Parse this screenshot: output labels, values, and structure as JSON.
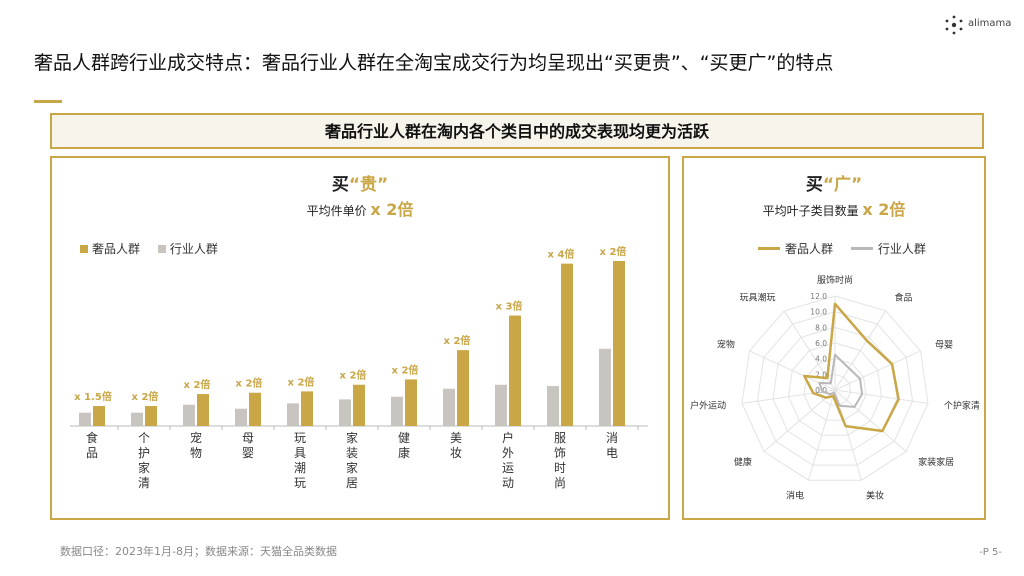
{
  "brand": {
    "name": "alimama"
  },
  "header": {
    "title": "奢品人群跨行业成交特点：奢品行业人群在全淘宝成交行为均呈现出“买更贵”、“买更广”的特点"
  },
  "banner": {
    "text": "奢品行业人群在淘内各个类目中的成交表现均更为活跃"
  },
  "left_panel": {
    "title_main": "买",
    "title_highlight": "“贵”",
    "subtitle_label": "平均件单价",
    "subtitle_multiplier": "x 2倍"
  },
  "right_panel": {
    "title_main": "买",
    "title_highlight": "“广”",
    "subtitle_label": "平均叶子类目数量",
    "subtitle_multiplier": "x 2倍"
  },
  "footer": {
    "note": "数据口径：2023年1月-8月；数据来源：天猫全品类数据",
    "page": "-P 5-"
  },
  "colors": {
    "gold": "#c9a646",
    "gray": "#c8c4c0",
    "border": "#c9a646"
  },
  "chart_data": [
    {
      "type": "bar",
      "title": "买“贵” 平均件单价 x 2倍",
      "categories": [
        "食品",
        "个护家清",
        "宠物",
        "母婴",
        "玩具潮玩",
        "家装家居",
        "健康",
        "美妆",
        "户外运动",
        "服饰时尚",
        "消电"
      ],
      "series": [
        {
          "name": "行业人群",
          "color": "#c8c4c0",
          "values": [
            1.0,
            1.0,
            1.6,
            1.3,
            1.7,
            2.0,
            2.2,
            2.8,
            3.1,
            3.0,
            5.8
          ]
        },
        {
          "name": "奢品人群",
          "color": "#c9a646",
          "values": [
            1.5,
            1.5,
            2.4,
            2.5,
            2.6,
            3.1,
            3.5,
            5.7,
            8.3,
            12.2,
            12.4
          ]
        }
      ],
      "data_labels": [
        "x 1.5倍",
        "x 2倍",
        "x 2倍",
        "x 2倍",
        "x 2倍",
        "x 2倍",
        "x 2倍",
        "x 2倍",
        "x 3倍",
        "x 4倍",
        "x 2倍"
      ],
      "legend": [
        "奢品人群",
        "行业人群"
      ],
      "ylim": [
        0,
        13
      ],
      "xlabel": "",
      "ylabel": ""
    },
    {
      "type": "radar",
      "title": "买“广” 平均叶子类目数量 x 2倍",
      "categories": [
        "服饰时尚",
        "食品",
        "母婴",
        "个护家清",
        "家装家居",
        "美妆",
        "消电",
        "健康",
        "户外运动",
        "宠物",
        "玩具潮玩"
      ],
      "ticks": [
        "0.0",
        "2.0",
        "4.0",
        "6.0",
        "8.0",
        "10.0",
        "12.0"
      ],
      "rlim": [
        0,
        12
      ],
      "series": [
        {
          "name": "奢品人群",
          "color": "#c9a646",
          "values": [
            11.0,
            7.5,
            8.0,
            8.2,
            8.0,
            4.8,
            0.8,
            1.5,
            2.8,
            4.3,
            1.8
          ]
        },
        {
          "name": "行业人群",
          "color": "#b8b8b8",
          "values": [
            4.5,
            3.3,
            3.5,
            3.5,
            3.3,
            2.1,
            0.4,
            0.8,
            1.6,
            2.2,
            1.0
          ]
        }
      ],
      "legend": [
        "奢品人群",
        "行业人群"
      ]
    }
  ]
}
